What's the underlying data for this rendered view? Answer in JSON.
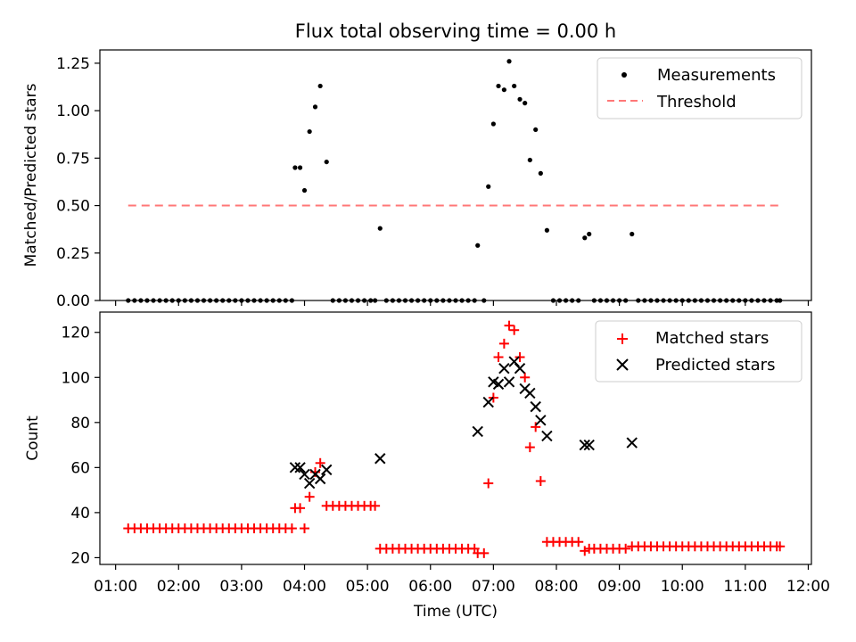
{
  "chart_data": [
    {
      "type": "scatter",
      "title": "Flux total observing time = 0.00 h",
      "xlabel": "",
      "ylabel": "Matched/Predicted stars",
      "ylim": [
        0,
        1.32
      ],
      "yticks": [
        "0.00",
        "0.25",
        "0.50",
        "0.75",
        "1.00",
        "1.25"
      ],
      "legend_position": "upper right",
      "series": [
        {
          "name": "Measurements",
          "marker": "dot",
          "color": "#000000",
          "points": [
            [
              1.2,
              0
            ],
            [
              1.3,
              0
            ],
            [
              1.4,
              0
            ],
            [
              1.5,
              0
            ],
            [
              1.6,
              0
            ],
            [
              1.7,
              0
            ],
            [
              1.8,
              0
            ],
            [
              1.9,
              0
            ],
            [
              2.0,
              0
            ],
            [
              2.1,
              0
            ],
            [
              2.2,
              0
            ],
            [
              2.3,
              0
            ],
            [
              2.4,
              0
            ],
            [
              2.5,
              0
            ],
            [
              2.6,
              0
            ],
            [
              2.7,
              0
            ],
            [
              2.8,
              0
            ],
            [
              2.9,
              0
            ],
            [
              3.0,
              0
            ],
            [
              3.1,
              0
            ],
            [
              3.2,
              0
            ],
            [
              3.3,
              0
            ],
            [
              3.4,
              0
            ],
            [
              3.5,
              0
            ],
            [
              3.6,
              0
            ],
            [
              3.7,
              0
            ],
            [
              3.8,
              0
            ],
            [
              3.85,
              0.7
            ],
            [
              3.93,
              0.7
            ],
            [
              4.0,
              0.58
            ],
            [
              4.08,
              0.89
            ],
            [
              4.17,
              1.02
            ],
            [
              4.25,
              1.13
            ],
            [
              4.35,
              0.73
            ],
            [
              4.45,
              0
            ],
            [
              4.55,
              0
            ],
            [
              4.65,
              0
            ],
            [
              4.75,
              0
            ],
            [
              4.85,
              0
            ],
            [
              4.95,
              0
            ],
            [
              5.05,
              0
            ],
            [
              5.12,
              0
            ],
            [
              5.2,
              0.38
            ],
            [
              5.3,
              0
            ],
            [
              5.4,
              0
            ],
            [
              5.5,
              0
            ],
            [
              5.6,
              0
            ],
            [
              5.7,
              0
            ],
            [
              5.8,
              0
            ],
            [
              5.9,
              0
            ],
            [
              6.0,
              0
            ],
            [
              6.1,
              0
            ],
            [
              6.2,
              0
            ],
            [
              6.3,
              0
            ],
            [
              6.4,
              0
            ],
            [
              6.5,
              0
            ],
            [
              6.6,
              0
            ],
            [
              6.7,
              0
            ],
            [
              6.75,
              0.29
            ],
            [
              6.85,
              0
            ],
            [
              6.92,
              0.6
            ],
            [
              7.0,
              0.93
            ],
            [
              7.08,
              1.13
            ],
            [
              7.17,
              1.11
            ],
            [
              7.25,
              1.26
            ],
            [
              7.33,
              1.13
            ],
            [
              7.42,
              1.06
            ],
            [
              7.5,
              1.04
            ],
            [
              7.58,
              0.74
            ],
            [
              7.67,
              0.9
            ],
            [
              7.75,
              0.67
            ],
            [
              7.85,
              0.37
            ],
            [
              7.95,
              0
            ],
            [
              8.05,
              0
            ],
            [
              8.15,
              0
            ],
            [
              8.25,
              0
            ],
            [
              8.35,
              0
            ],
            [
              8.45,
              0.33
            ],
            [
              8.52,
              0.35
            ],
            [
              8.6,
              0
            ],
            [
              8.7,
              0
            ],
            [
              8.8,
              0
            ],
            [
              8.9,
              0
            ],
            [
              9.0,
              0
            ],
            [
              9.1,
              0
            ],
            [
              9.2,
              0.35
            ],
            [
              9.3,
              0
            ],
            [
              9.4,
              0
            ],
            [
              9.5,
              0
            ],
            [
              9.6,
              0
            ],
            [
              9.7,
              0
            ],
            [
              9.8,
              0
            ],
            [
              9.9,
              0
            ],
            [
              10.0,
              0
            ],
            [
              10.1,
              0
            ],
            [
              10.2,
              0
            ],
            [
              10.3,
              0
            ],
            [
              10.4,
              0
            ],
            [
              10.5,
              0
            ],
            [
              10.6,
              0
            ],
            [
              10.7,
              0
            ],
            [
              10.8,
              0
            ],
            [
              10.9,
              0
            ],
            [
              11.0,
              0
            ],
            [
              11.1,
              0
            ],
            [
              11.2,
              0
            ],
            [
              11.3,
              0
            ],
            [
              11.4,
              0
            ],
            [
              11.5,
              0
            ],
            [
              11.55,
              0
            ]
          ]
        },
        {
          "name": "Threshold",
          "marker": "dashed-line",
          "color": "#ff7777",
          "points": [
            [
              1.2,
              0.5
            ],
            [
              11.55,
              0.5
            ]
          ]
        }
      ]
    },
    {
      "type": "scatter",
      "title": "",
      "xlabel": "Time (UTC)",
      "ylabel": "Count",
      "ylim": [
        17,
        129
      ],
      "yticks": [
        "20",
        "40",
        "60",
        "80",
        "100",
        "120"
      ],
      "xlim": [
        0.75,
        12.05
      ],
      "xticks": [
        "01:00",
        "02:00",
        "03:00",
        "04:00",
        "05:00",
        "06:00",
        "07:00",
        "08:00",
        "09:00",
        "10:00",
        "11:00",
        "12:00"
      ],
      "legend_position": "upper right",
      "series": [
        {
          "name": "Matched stars",
          "marker": "plus",
          "color": "#ff0000",
          "points": [
            [
              1.2,
              33
            ],
            [
              1.3,
              33
            ],
            [
              1.4,
              33
            ],
            [
              1.5,
              33
            ],
            [
              1.6,
              33
            ],
            [
              1.7,
              33
            ],
            [
              1.8,
              33
            ],
            [
              1.9,
              33
            ],
            [
              2.0,
              33
            ],
            [
              2.1,
              33
            ],
            [
              2.2,
              33
            ],
            [
              2.3,
              33
            ],
            [
              2.4,
              33
            ],
            [
              2.5,
              33
            ],
            [
              2.6,
              33
            ],
            [
              2.7,
              33
            ],
            [
              2.8,
              33
            ],
            [
              2.9,
              33
            ],
            [
              3.0,
              33
            ],
            [
              3.1,
              33
            ],
            [
              3.2,
              33
            ],
            [
              3.3,
              33
            ],
            [
              3.4,
              33
            ],
            [
              3.5,
              33
            ],
            [
              3.6,
              33
            ],
            [
              3.7,
              33
            ],
            [
              3.8,
              33
            ],
            [
              3.85,
              42
            ],
            [
              3.93,
              42
            ],
            [
              4.0,
              33
            ],
            [
              4.08,
              47
            ],
            [
              4.17,
              58
            ],
            [
              4.25,
              62
            ],
            [
              4.35,
              43
            ],
            [
              4.45,
              43
            ],
            [
              4.55,
              43
            ],
            [
              4.65,
              43
            ],
            [
              4.75,
              43
            ],
            [
              4.85,
              43
            ],
            [
              4.95,
              43
            ],
            [
              5.05,
              43
            ],
            [
              5.12,
              43
            ],
            [
              5.2,
              24
            ],
            [
              5.3,
              24
            ],
            [
              5.4,
              24
            ],
            [
              5.5,
              24
            ],
            [
              5.6,
              24
            ],
            [
              5.7,
              24
            ],
            [
              5.8,
              24
            ],
            [
              5.9,
              24
            ],
            [
              6.0,
              24
            ],
            [
              6.1,
              24
            ],
            [
              6.2,
              24
            ],
            [
              6.3,
              24
            ],
            [
              6.4,
              24
            ],
            [
              6.5,
              24
            ],
            [
              6.6,
              24
            ],
            [
              6.7,
              24
            ],
            [
              6.75,
              22
            ],
            [
              6.85,
              22
            ],
            [
              6.92,
              53
            ],
            [
              7.0,
              91
            ],
            [
              7.08,
              109
            ],
            [
              7.17,
              115
            ],
            [
              7.25,
              123
            ],
            [
              7.33,
              121
            ],
            [
              7.42,
              109
            ],
            [
              7.5,
              100
            ],
            [
              7.58,
              69
            ],
            [
              7.67,
              78
            ],
            [
              7.75,
              54
            ],
            [
              7.85,
              27
            ],
            [
              7.95,
              27
            ],
            [
              8.05,
              27
            ],
            [
              8.15,
              27
            ],
            [
              8.25,
              27
            ],
            [
              8.35,
              27
            ],
            [
              8.45,
              23
            ],
            [
              8.52,
              24
            ],
            [
              8.6,
              24
            ],
            [
              8.7,
              24
            ],
            [
              8.8,
              24
            ],
            [
              8.9,
              24
            ],
            [
              9.0,
              24
            ],
            [
              9.1,
              24
            ],
            [
              9.2,
              25
            ],
            [
              9.3,
              25
            ],
            [
              9.4,
              25
            ],
            [
              9.5,
              25
            ],
            [
              9.6,
              25
            ],
            [
              9.7,
              25
            ],
            [
              9.8,
              25
            ],
            [
              9.9,
              25
            ],
            [
              10.0,
              25
            ],
            [
              10.1,
              25
            ],
            [
              10.2,
              25
            ],
            [
              10.3,
              25
            ],
            [
              10.4,
              25
            ],
            [
              10.5,
              25
            ],
            [
              10.6,
              25
            ],
            [
              10.7,
              25
            ],
            [
              10.8,
              25
            ],
            [
              10.9,
              25
            ],
            [
              11.0,
              25
            ],
            [
              11.1,
              25
            ],
            [
              11.2,
              25
            ],
            [
              11.3,
              25
            ],
            [
              11.4,
              25
            ],
            [
              11.5,
              25
            ],
            [
              11.55,
              25
            ]
          ]
        },
        {
          "name": "Predicted stars",
          "marker": "x",
          "color": "#000000",
          "points": [
            [
              3.85,
              60
            ],
            [
              3.93,
              60
            ],
            [
              4.0,
              57
            ],
            [
              4.08,
              53
            ],
            [
              4.17,
              57
            ],
            [
              4.25,
              55
            ],
            [
              4.35,
              59
            ],
            [
              5.2,
              64
            ],
            [
              6.75,
              76
            ],
            [
              6.92,
              89
            ],
            [
              7.0,
              98
            ],
            [
              7.08,
              97
            ],
            [
              7.17,
              104
            ],
            [
              7.25,
              98
            ],
            [
              7.33,
              107
            ],
            [
              7.42,
              104
            ],
            [
              7.5,
              95
            ],
            [
              7.58,
              93
            ],
            [
              7.67,
              87
            ],
            [
              7.75,
              81
            ],
            [
              7.85,
              74
            ],
            [
              8.45,
              70
            ],
            [
              8.52,
              70
            ],
            [
              9.2,
              71
            ]
          ]
        }
      ]
    }
  ]
}
